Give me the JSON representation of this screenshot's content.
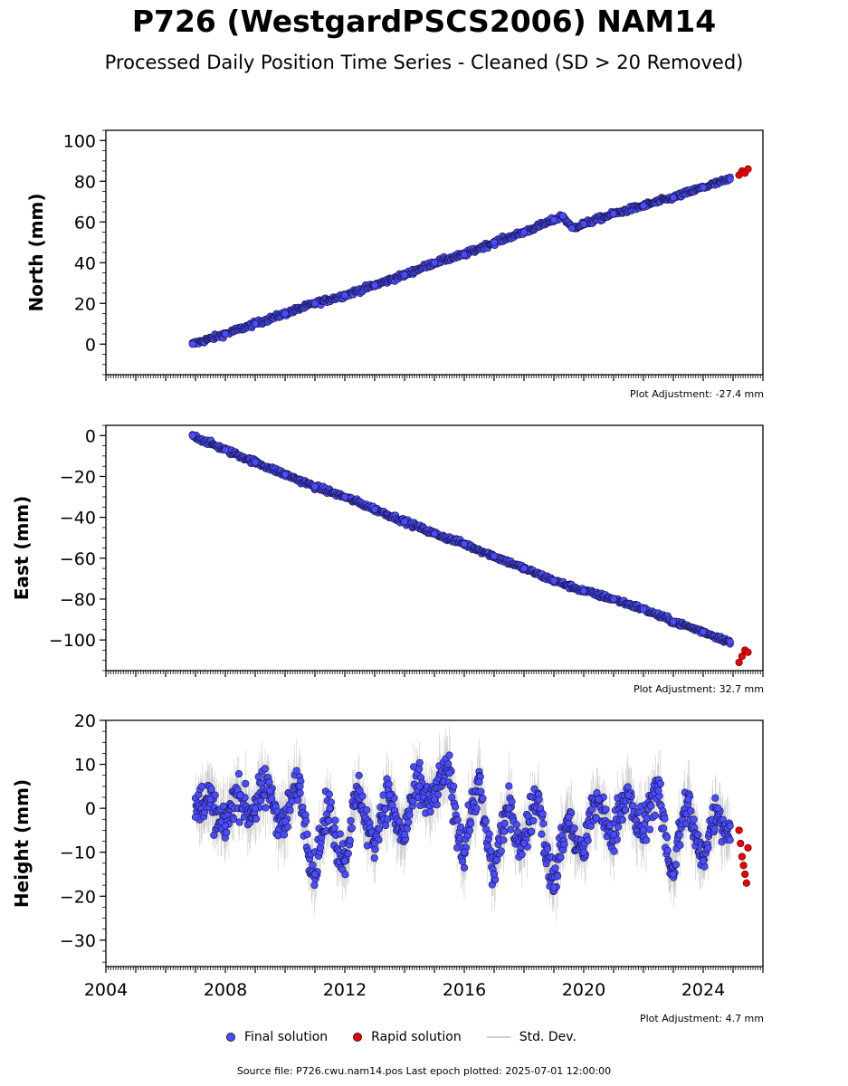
{
  "title": "P726 (WestgardPSCS2006) NAM14",
  "subtitle": "Processed Daily Position Time Series - Cleaned (SD > 20 Removed)",
  "legend": {
    "final": "Final solution",
    "rapid": "Rapid solution",
    "stddev": "Std. Dev.",
    "final_color": "#4b4bff",
    "rapid_color": "#ee0000",
    "stddev_color": "#cfcfcf"
  },
  "source": "Source file: P726.cwu.nam14.pos  Last epoch plotted: 2025-07-01 12:00:00",
  "chart_data": [
    {
      "type": "scatter",
      "ylabel": "North (mm)",
      "adjustment": "Plot Adjustment: -27.4 mm",
      "xlim": [
        2004,
        2026
      ],
      "ylim": [
        -15,
        105
      ],
      "yticks": [
        "100",
        "80",
        "60",
        "40",
        "20",
        "0"
      ],
      "ytick_values": [
        100,
        80,
        60,
        40,
        20,
        0
      ],
      "show_xticklabels": false,
      "series": [
        {
          "name": "Final solution",
          "x": [
            2006.9,
            2008.0,
            2009.0,
            2010.0,
            2011.0,
            2012.0,
            2013.0,
            2014.0,
            2015.0,
            2016.0,
            2017.0,
            2018.0,
            2019.0,
            2019.3,
            2019.6,
            2020.0,
            2021.0,
            2022.0,
            2023.0,
            2024.0,
            2024.9
          ],
          "y": [
            0,
            5,
            10,
            15,
            20,
            24,
            29,
            34,
            40,
            44,
            50,
            55,
            61,
            63,
            57,
            59,
            64,
            68,
            72,
            77,
            81
          ]
        },
        {
          "name": "Rapid solution",
          "x": [
            2025.2,
            2025.3,
            2025.4,
            2025.5
          ],
          "y": [
            83,
            85,
            84,
            86
          ]
        }
      ]
    },
    {
      "type": "scatter",
      "ylabel": "East (mm)",
      "adjustment": "Plot Adjustment: 32.7 mm",
      "xlim": [
        2004,
        2026
      ],
      "ylim": [
        -115,
        5
      ],
      "yticks": [
        "0",
        "−20",
        "−40",
        "−60",
        "−80",
        "−100"
      ],
      "ytick_values": [
        0,
        -20,
        -40,
        -60,
        -80,
        -100
      ],
      "show_xticklabels": false,
      "series": [
        {
          "name": "Final solution",
          "x": [
            2006.9,
            2008.0,
            2009.0,
            2010.0,
            2011.0,
            2012.0,
            2013.0,
            2014.0,
            2015.0,
            2016.0,
            2017.0,
            2018.0,
            2019.0,
            2020.0,
            2021.0,
            2022.0,
            2023.0,
            2024.0,
            2024.9
          ],
          "y": [
            0,
            -7,
            -13,
            -19,
            -25,
            -30,
            -36,
            -42,
            -48,
            -53,
            -59,
            -65,
            -71,
            -76,
            -80,
            -85,
            -91,
            -96,
            -101
          ]
        },
        {
          "name": "Rapid solution",
          "x": [
            2025.2,
            2025.3,
            2025.4,
            2025.5
          ],
          "y": [
            -111,
            -108,
            -105,
            -106
          ]
        }
      ]
    },
    {
      "type": "scatter",
      "ylabel": "Height (mm)",
      "adjustment": "Plot Adjustment: 4.7 mm",
      "xlim": [
        2004,
        2026
      ],
      "ylim": [
        -36,
        20
      ],
      "yticks": [
        "20",
        "10",
        "0",
        "−10",
        "−20",
        "−30"
      ],
      "ytick_values": [
        20,
        10,
        0,
        -10,
        -20,
        -30
      ],
      "show_xticklabels": true,
      "xticks": [
        "2004",
        "2008",
        "2012",
        "2016",
        "2020",
        "2024"
      ],
      "xtick_values": [
        2004,
        2008,
        2012,
        2016,
        2020,
        2024
      ],
      "series": [
        {
          "name": "Final solution",
          "x": [
            2007.0,
            2007.5,
            2008.0,
            2008.5,
            2009.0,
            2009.5,
            2010.0,
            2010.5,
            2011.0,
            2011.5,
            2012.0,
            2012.5,
            2013.0,
            2013.5,
            2014.0,
            2014.5,
            2015.0,
            2015.5,
            2016.0,
            2016.5,
            2017.0,
            2017.5,
            2018.0,
            2018.5,
            2019.0,
            2019.5,
            2020.0,
            2020.5,
            2021.0,
            2021.5,
            2022.0,
            2022.5,
            2023.0,
            2023.5,
            2024.0,
            2024.5,
            2024.9
          ],
          "y": [
            -2,
            2,
            -4,
            3,
            0,
            4,
            -3,
            5,
            -15,
            0,
            -12,
            4,
            -8,
            3,
            -6,
            5,
            2,
            8,
            -10,
            6,
            -15,
            0,
            -8,
            2,
            -18,
            -2,
            -10,
            2,
            -6,
            3,
            -5,
            4,
            -15,
            2,
            -12,
            0,
            -4
          ]
        },
        {
          "name": "Rapid solution",
          "x": [
            2025.2,
            2025.25,
            2025.3,
            2025.35,
            2025.4,
            2025.45,
            2025.5
          ],
          "y": [
            -5,
            -8,
            -11,
            -13,
            -15,
            -17,
            -9
          ]
        }
      ]
    }
  ]
}
